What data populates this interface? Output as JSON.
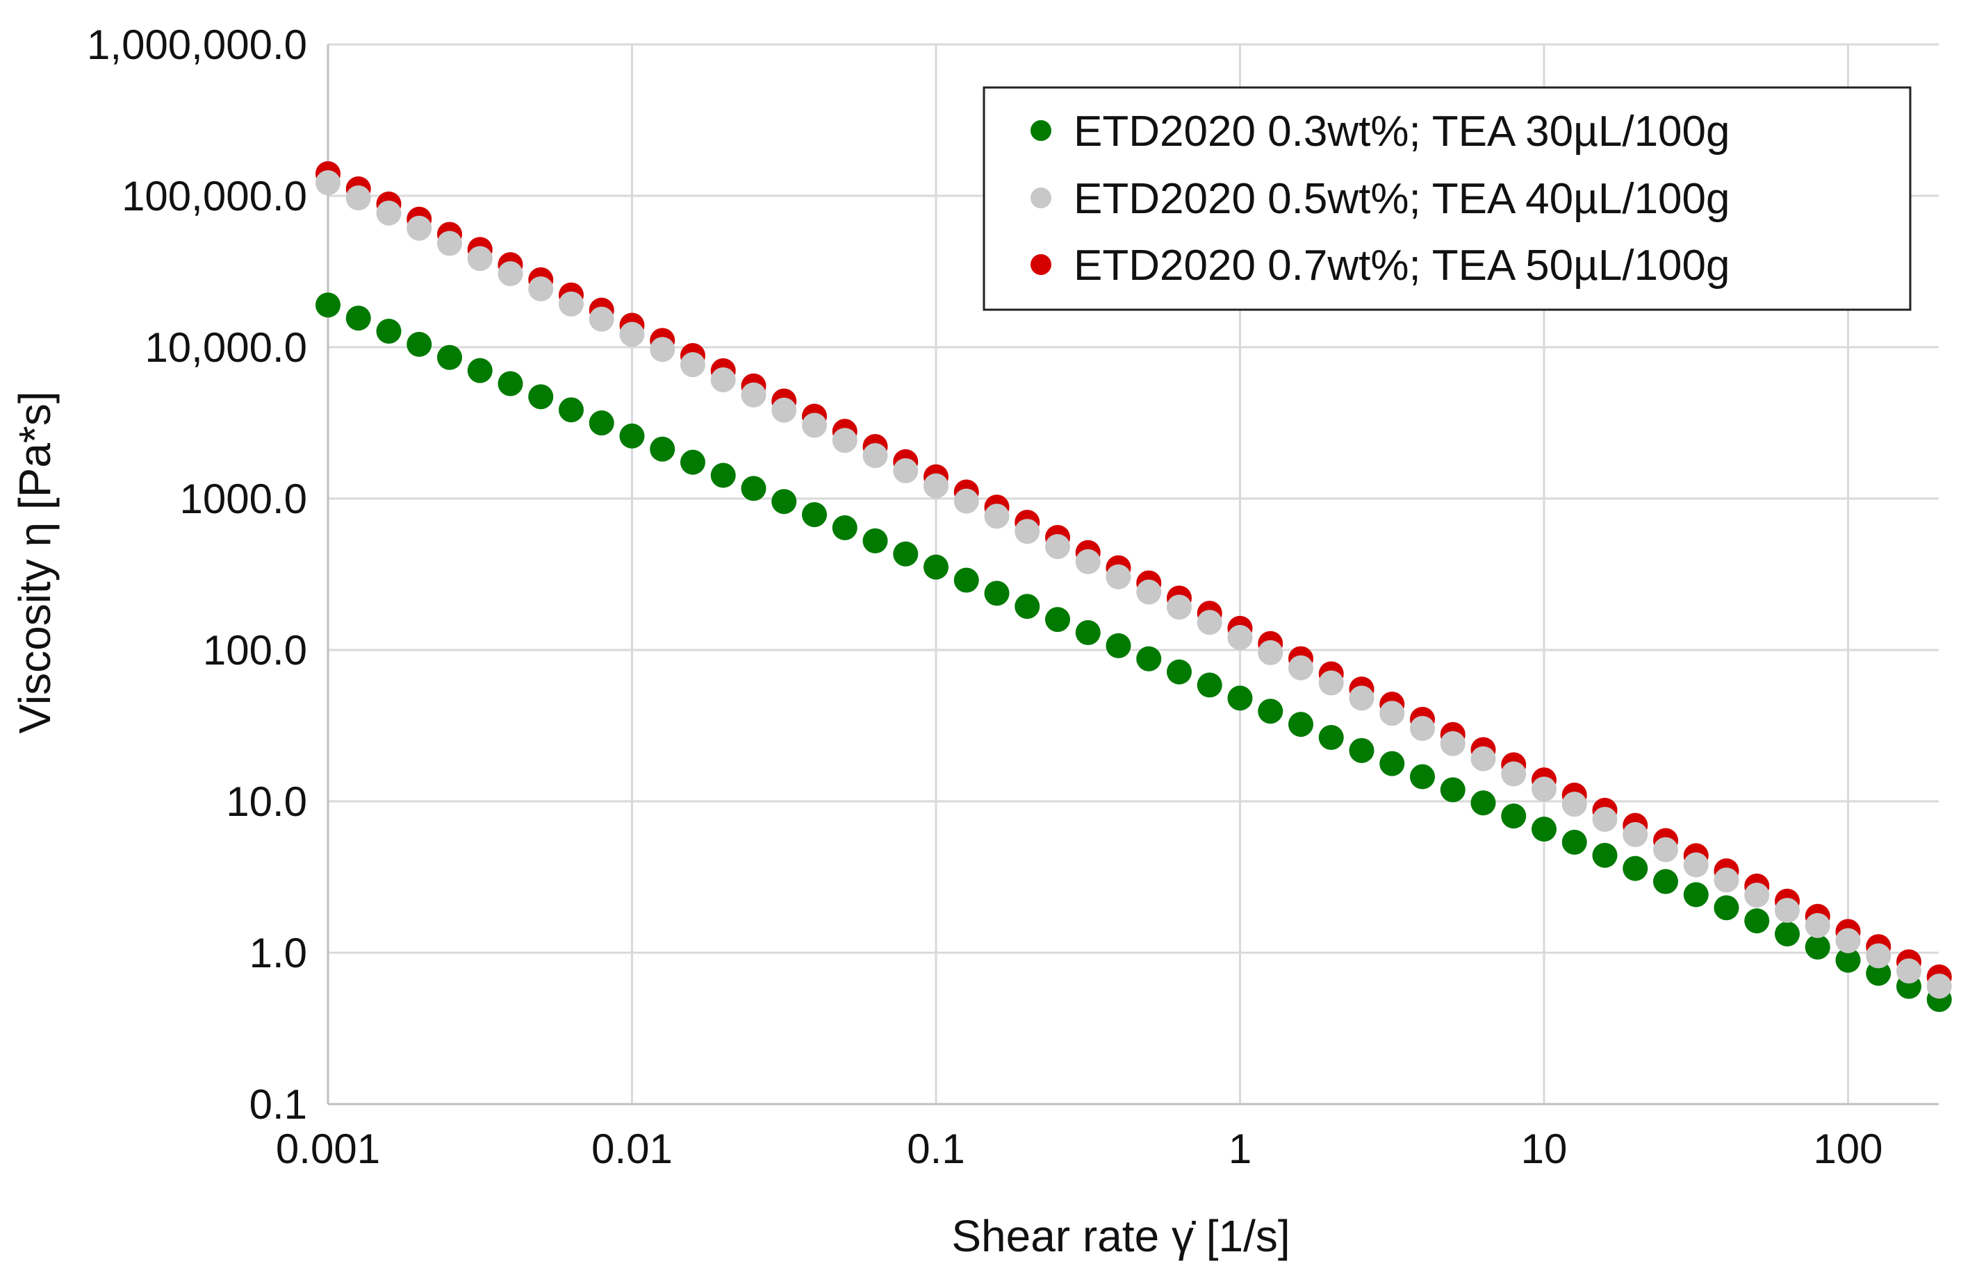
{
  "chart_data": {
    "type": "scatter",
    "title": "",
    "xlabel": "Shear rate γ̇ [1/s]",
    "ylabel": "Viscosity η [Pa*s]",
    "xscale": "log",
    "yscale": "log",
    "xlim": [
      0.001,
      200
    ],
    "ylim": [
      0.1,
      1000000
    ],
    "grid": true,
    "legend_position": "top-right",
    "x_tick_labels": [
      "0.001",
      "0.01",
      "0.1",
      "1",
      "10",
      "100"
    ],
    "y_tick_labels": [
      "0.1",
      "1.0",
      "10.0",
      "100.0",
      "1000.0",
      "10,000.0",
      "100,000.0",
      "1,000,000.0"
    ],
    "x_points_rule": "x[i] = 0.001 * 10^(i/10), i = 0..53 (10 points per decade, 0.001 to ~200 1/s)",
    "series": [
      {
        "name": "ETD2020 0.3wt%; TEA 30µL/100g",
        "color": "#007a00",
        "point_count": 54,
        "start": [
          0.001,
          19000
        ],
        "end": [
          200,
          0.49
        ]
      },
      {
        "name": "ETD2020 0.5wt%; TEA 40µL/100g",
        "color": "#c8c8c8",
        "point_count": 54,
        "start": [
          0.001,
          122000
        ],
        "end": [
          200,
          0.6
        ]
      },
      {
        "name": "ETD2020 0.7wt%; TEA 50µL/100g",
        "color": "#d40000",
        "point_count": 54,
        "start": [
          0.001,
          140000
        ],
        "end": [
          200,
          0.69
        ]
      }
    ]
  }
}
